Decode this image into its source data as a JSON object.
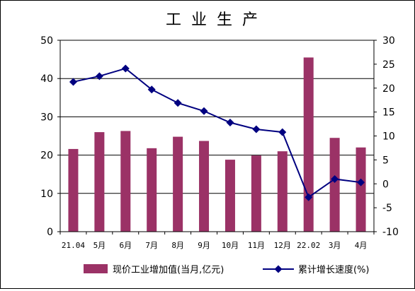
{
  "chart_data": {
    "type": "bar",
    "title": "工业生产",
    "categories": [
      "21.04",
      "5月",
      "6月",
      "7月",
      "8月",
      "9月",
      "10月",
      "11月",
      "12月",
      "22.02",
      "3月",
      "4月"
    ],
    "series": [
      {
        "name": "现价工业增加值(当月,亿元)",
        "type": "bar",
        "axis": "left",
        "color": "#9b3266",
        "values": [
          21.6,
          26.0,
          26.3,
          21.8,
          24.8,
          23.7,
          18.8,
          19.9,
          21.0,
          45.5,
          24.5,
          22.0
        ]
      },
      {
        "name": "累计增长速度(%)",
        "type": "line",
        "axis": "right",
        "color": "#000080",
        "marker": "diamond",
        "values": [
          21.3,
          22.5,
          24.1,
          19.7,
          16.9,
          15.2,
          12.8,
          11.4,
          10.8,
          -2.8,
          1.0,
          0.3
        ]
      }
    ],
    "y_left": {
      "min": 0,
      "max": 50,
      "step": 10,
      "ticks": [
        "0",
        "10",
        "20",
        "30",
        "40",
        "50"
      ]
    },
    "y_right": {
      "min": -10,
      "max": 30,
      "step": 5,
      "ticks": [
        "-10",
        "-5",
        "0",
        "5",
        "10",
        "15",
        "20",
        "25",
        "30"
      ]
    },
    "grid": true,
    "legend_position": "bottom"
  }
}
